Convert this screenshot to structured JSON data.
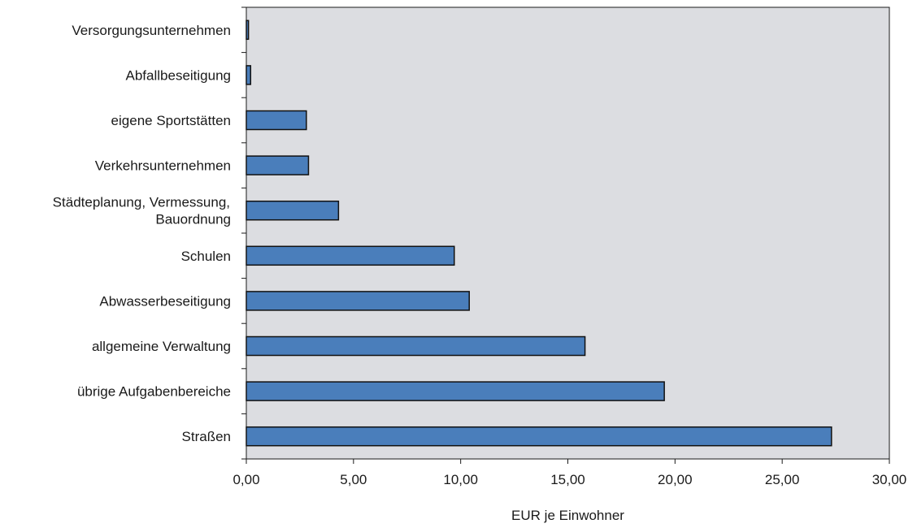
{
  "chart_data": {
    "type": "bar",
    "orientation": "horizontal",
    "categories": [
      [
        "Versorgungsunternehmen"
      ],
      [
        "Abfallbeseitigung"
      ],
      [
        "eigene Sportstätten"
      ],
      [
        "Verkehrsunternehmen"
      ],
      [
        "Städteplanung, Vermessung,",
        "Bauordnung"
      ],
      [
        "Schulen"
      ],
      [
        "Abwasserbeseitigung"
      ],
      [
        "allgemeine Verwaltung"
      ],
      [
        "übrige Aufgabenbereiche"
      ],
      [
        "Straßen"
      ]
    ],
    "values": [
      0.1,
      0.2,
      2.8,
      2.9,
      4.3,
      9.7,
      10.4,
      15.8,
      19.5,
      27.3
    ],
    "xlabel": "EUR je Einwohner",
    "xlim": [
      0,
      30
    ],
    "xticks": [
      0,
      5,
      10,
      15,
      20,
      25,
      30
    ],
    "xtick_labels": [
      "0,00",
      "5,00",
      "10,00",
      "15,00",
      "20,00",
      "25,00",
      "30,00"
    ],
    "grid": false,
    "colors": {
      "bar": "#4a7ebb",
      "bar_edge": "#111111",
      "plot_background": "#dcdde1"
    }
  }
}
